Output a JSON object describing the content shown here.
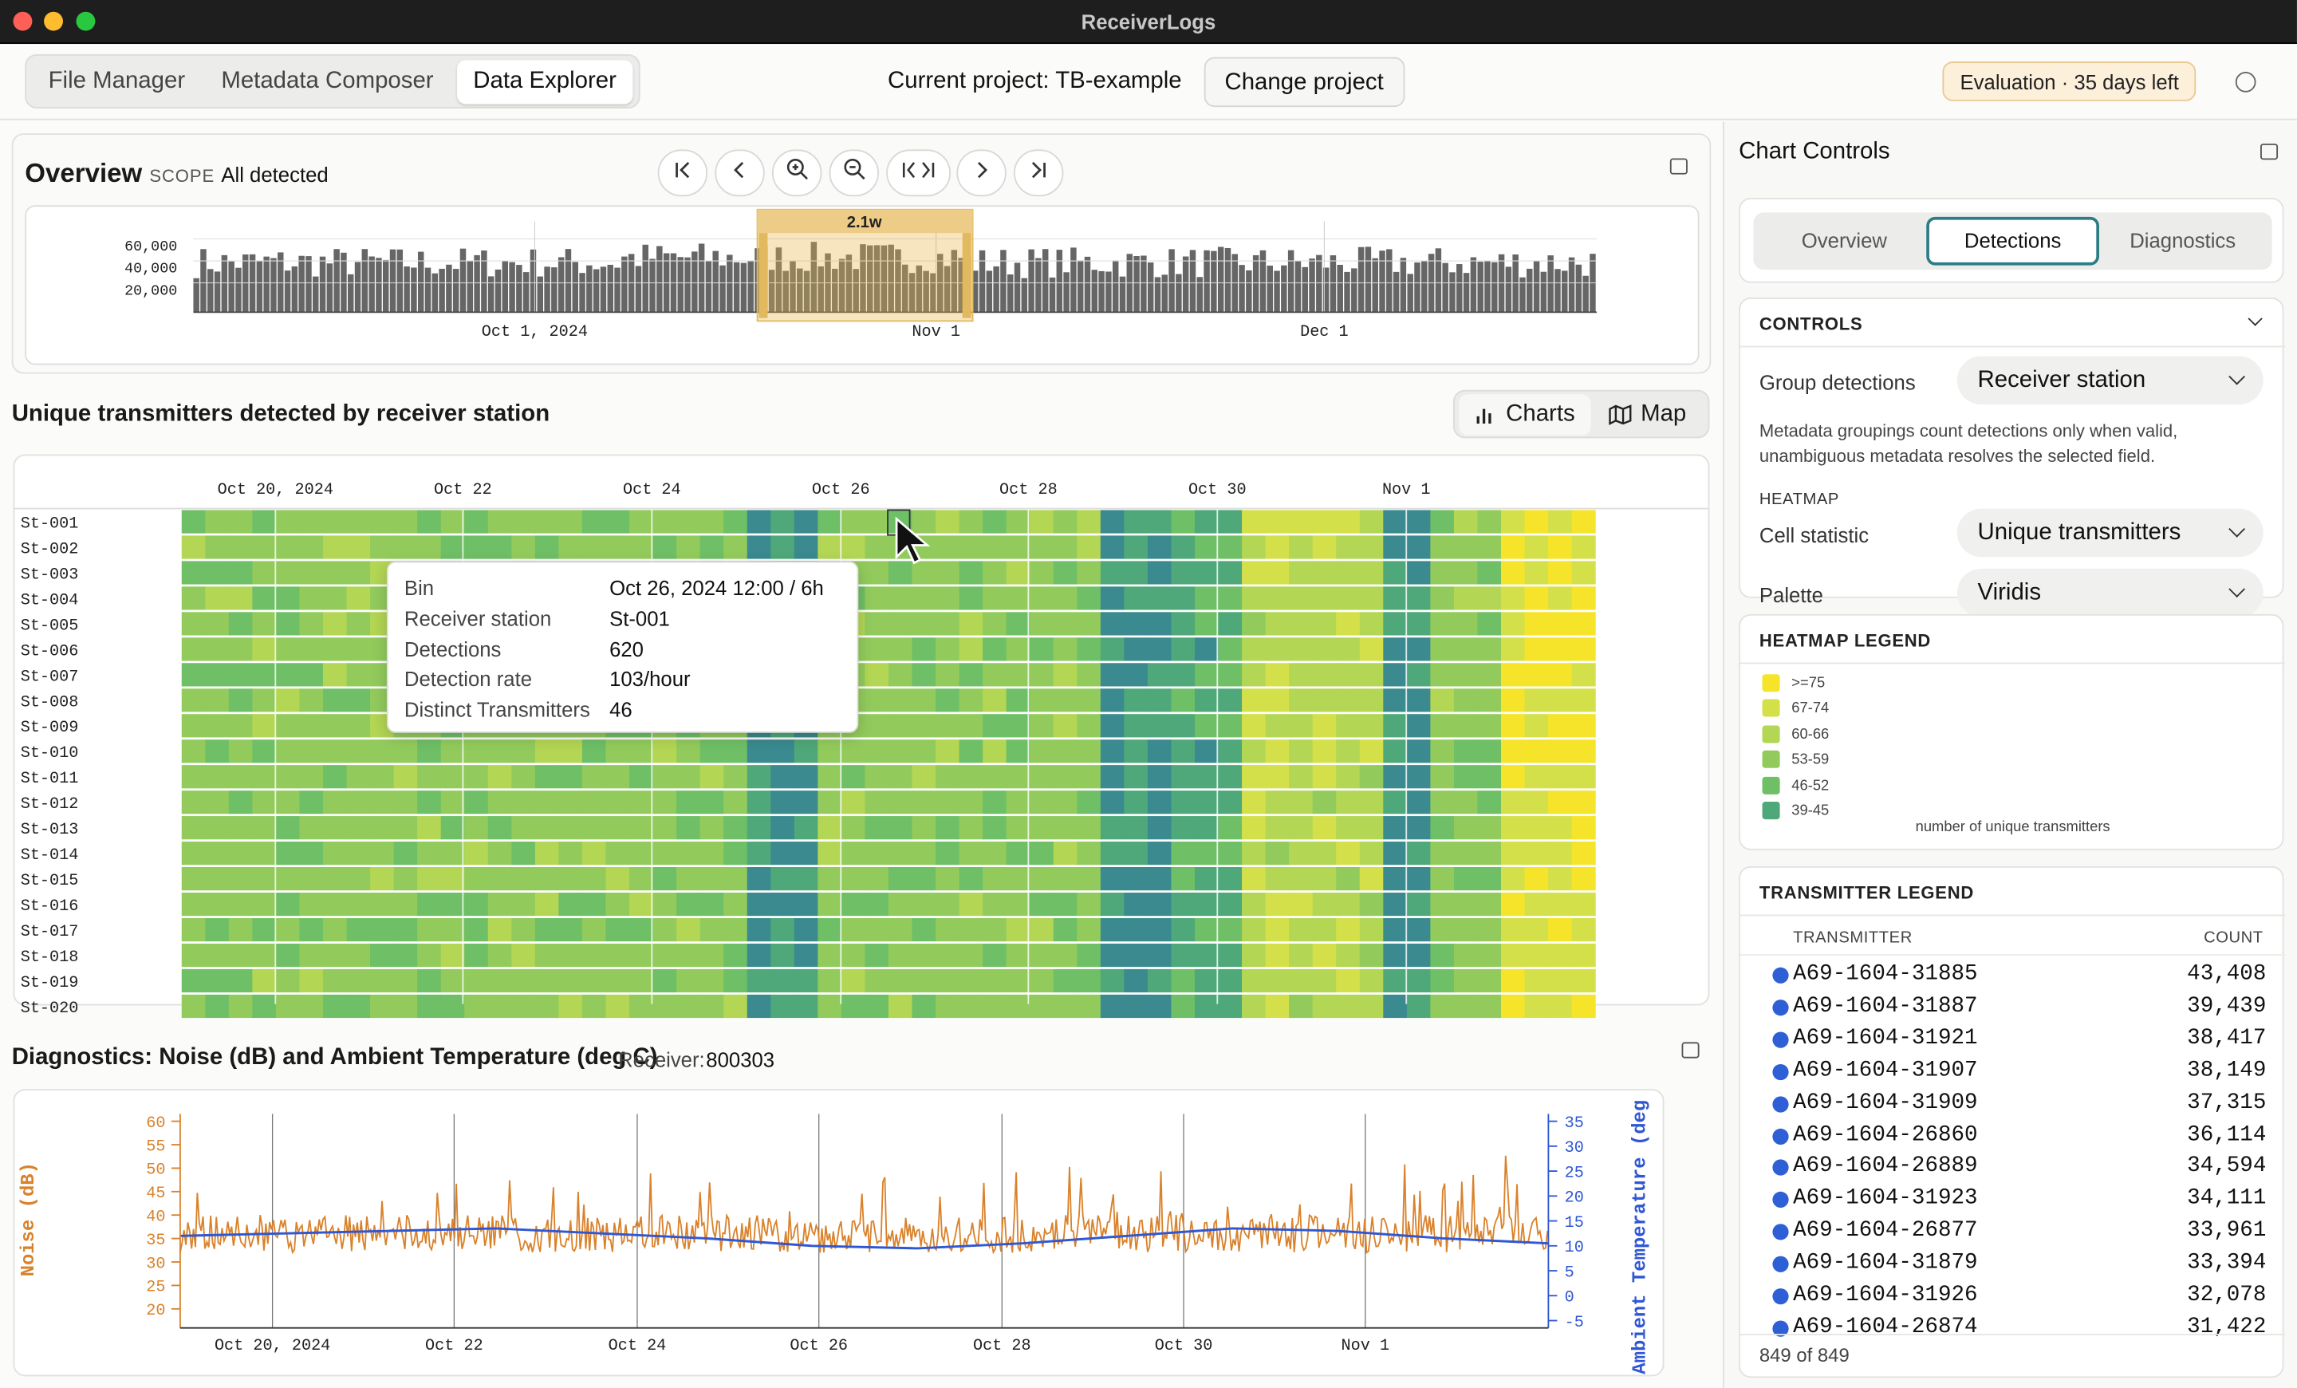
{
  "window": {
    "title": "ReceiverLogs"
  },
  "nav": {
    "tabs": [
      "File Manager",
      "Metadata Composer",
      "Data Explorer"
    ],
    "active": "Data Explorer"
  },
  "project": {
    "label": "Current project: TB-example",
    "change_label": "Change project"
  },
  "evaluation": "Evaluation · 35 days left",
  "overview": {
    "title": "Overview",
    "scope_label": "SCOPE",
    "scope_value": "All detected",
    "selection_label": "2.1w",
    "chart_data": {
      "type": "bar",
      "y_ticks": [
        "60,000",
        "40,000",
        "20,000"
      ],
      "x_ticks": [
        "Oct 1, 2024",
        "Nov 1",
        "Dec 1"
      ],
      "ylim": [
        0,
        70000
      ]
    }
  },
  "heatmap": {
    "title": "Unique transmitters detected by receiver station",
    "view_buttons": {
      "charts": "Charts",
      "map": "Map"
    },
    "chart_data": {
      "type": "heatmap",
      "x_ticks": [
        "Oct 20, 2024",
        "Oct 22",
        "Oct 24",
        "Oct 26",
        "Oct 28",
        "Oct 30",
        "Nov 1"
      ],
      "rows": [
        "St-001",
        "St-002",
        "St-003",
        "St-004",
        "St-005",
        "St-006",
        "St-007",
        "St-008",
        "St-009",
        "St-010",
        "St-011",
        "St-012",
        "St-013",
        "St-014",
        "St-015",
        "St-016",
        "St-017",
        "St-018",
        "St-019",
        "St-020"
      ],
      "bin": "6h"
    },
    "tooltip": {
      "rows": [
        {
          "key": "Bin",
          "value": "Oct 26, 2024 12:00  /  6h"
        },
        {
          "key": "Receiver station",
          "value": "St-001"
        },
        {
          "key": "Detections",
          "value": "620"
        },
        {
          "key": "Detection rate",
          "value": "103/hour"
        },
        {
          "key": "Distinct Transmitters",
          "value": "46"
        }
      ]
    }
  },
  "diagnostics": {
    "title": "Diagnostics: Noise (dB) and Ambient Temperature (deg C)",
    "receiver_label": "Receiver:",
    "receiver_value": "800303",
    "chart_data": {
      "type": "line",
      "x_ticks": [
        "Oct 20, 2024",
        "Oct 22",
        "Oct 24",
        "Oct 26",
        "Oct 28",
        "Oct 30",
        "Nov 1"
      ],
      "y_left_label": "Noise (dB)",
      "y_left_ticks": [
        "60",
        "55",
        "50",
        "45",
        "40",
        "35",
        "30",
        "25",
        "20"
      ],
      "y_right_label": "Ambient Temperature (deg",
      "y_right_ticks": [
        "35",
        "30",
        "25",
        "20",
        "15",
        "10",
        "5",
        "0",
        "-5"
      ],
      "series": [
        {
          "name": "Noise (dB)",
          "color": "#d9822b",
          "baseline": 36
        },
        {
          "name": "Ambient Temperature (deg C)",
          "color": "#2f57d4",
          "values": [
            12,
            12.5,
            13,
            13.5,
            12.5,
            11.5,
            10,
            9.5,
            10.5,
            12,
            13.5,
            13,
            11.5,
            10.5
          ]
        }
      ]
    }
  },
  "sidebar": {
    "title": "Chart Controls",
    "tabs": [
      "Overview",
      "Detections",
      "Diagnostics"
    ],
    "active_tab": "Detections",
    "controls": {
      "header": "CONTROLS",
      "group_label": "Group detections",
      "group_value": "Receiver station",
      "note": "Metadata groupings count detections only when valid, unambiguous metadata resolves the selected field.",
      "heatmap_header": "HEATMAP",
      "cell_stat_label": "Cell statistic",
      "cell_stat_value": "Unique transmitters",
      "palette_label": "Palette",
      "palette_value": "Viridis"
    },
    "heatmap_legend": {
      "header": "HEATMAP LEGEND",
      "items": [
        {
          "label": ">=75",
          "color": "#f5e42a"
        },
        {
          "label": "67-74",
          "color": "#d4e04a"
        },
        {
          "label": "60-66",
          "color": "#b3d654"
        },
        {
          "label": "53-59",
          "color": "#92cb5c"
        },
        {
          "label": "46-52",
          "color": "#6fbf66"
        },
        {
          "label": "39-45",
          "color": "#4ea879"
        }
      ],
      "caption": "number of unique transmitters"
    },
    "transmitter_legend": {
      "header": "TRANSMITTER LEGEND",
      "col_name": "TRANSMITTER",
      "col_count": "COUNT",
      "rows": [
        {
          "name": "A69-1604-31885",
          "count": "43,408"
        },
        {
          "name": "A69-1604-31887",
          "count": "39,439"
        },
        {
          "name": "A69-1604-31921",
          "count": "38,417"
        },
        {
          "name": "A69-1604-31907",
          "count": "38,149"
        },
        {
          "name": "A69-1604-31909",
          "count": "37,315"
        },
        {
          "name": "A69-1604-26860",
          "count": "36,114"
        },
        {
          "name": "A69-1604-26889",
          "count": "34,594"
        },
        {
          "name": "A69-1604-31923",
          "count": "34,111"
        },
        {
          "name": "A69-1604-26877",
          "count": "33,961"
        },
        {
          "name": "A69-1604-31879",
          "count": "33,394"
        },
        {
          "name": "A69-1604-31926",
          "count": "32,078"
        },
        {
          "name": "A69-1604-26874",
          "count": "31,422"
        }
      ],
      "footer": "849 of 849"
    }
  }
}
